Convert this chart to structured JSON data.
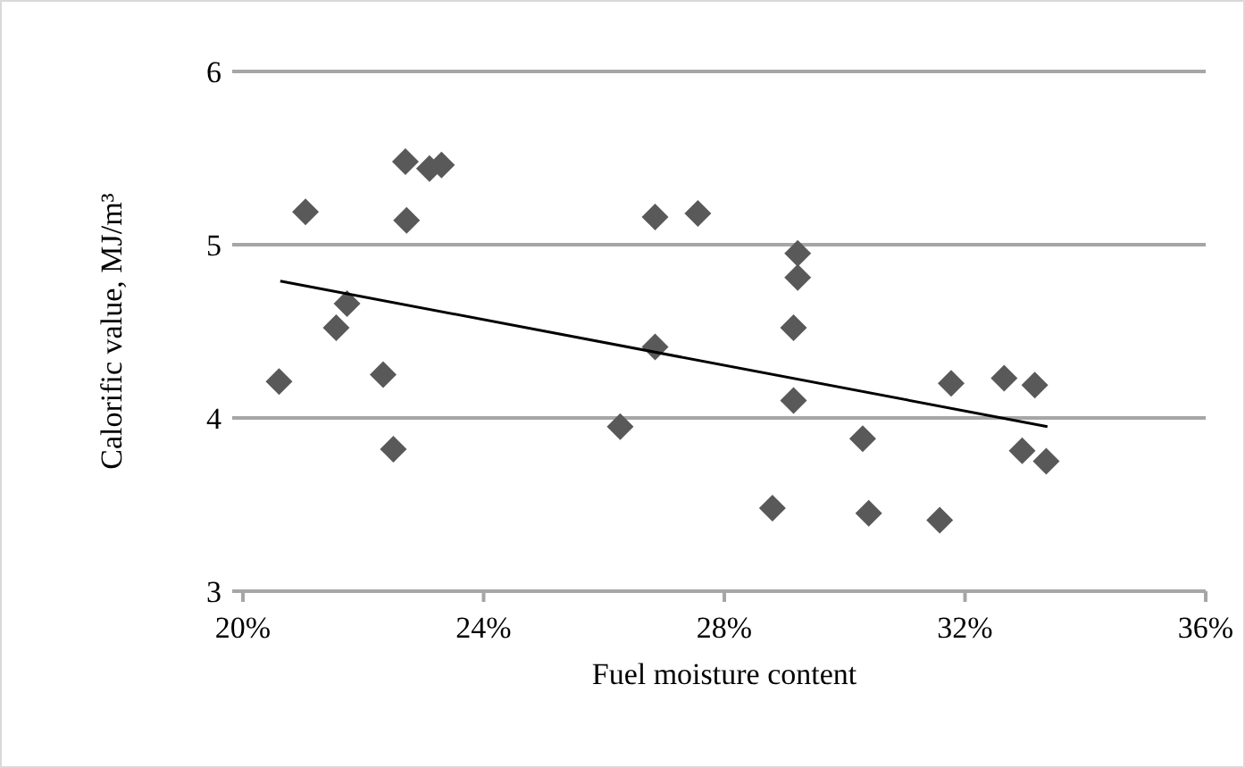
{
  "chart_data": {
    "type": "scatter",
    "xlabel": "Fuel moisture content",
    "ylabel": "Calorific value, MJ/m³",
    "xlim": [
      20,
      36
    ],
    "ylim": [
      3,
      6
    ],
    "xticks": [
      {
        "value": 20,
        "label": "20%"
      },
      {
        "value": 24,
        "label": "24%"
      },
      {
        "value": 28,
        "label": "28%"
      },
      {
        "value": 32,
        "label": "32%"
      },
      {
        "value": 36,
        "label": "36%"
      }
    ],
    "yticks": [
      3,
      4,
      5,
      6
    ],
    "grid": "y",
    "series": [
      {
        "marker": "diamond",
        "color": "#595959",
        "x": [
          20.6,
          21.04,
          21.55,
          21.73,
          22.33,
          22.5,
          22.7,
          22.72,
          23.1,
          23.3,
          26.27,
          26.85,
          26.85,
          27.56,
          28.8,
          29.22,
          29.22,
          29.15,
          29.15,
          30.3,
          30.4,
          31.58,
          31.77,
          32.65,
          33.16,
          32.95,
          33.35
        ],
        "values": [
          4.21,
          5.19,
          4.52,
          4.66,
          4.25,
          3.82,
          5.48,
          5.14,
          5.44,
          5.46,
          3.95,
          5.16,
          4.41,
          5.18,
          3.48,
          4.95,
          4.81,
          4.52,
          4.1,
          3.88,
          3.45,
          3.41,
          4.2,
          4.23,
          4.19,
          3.81,
          3.75
        ]
      },
      {
        "type": "line",
        "color": "#000000",
        "x": [
          20.62,
          33.37
        ],
        "values": [
          4.79,
          3.95
        ]
      }
    ]
  }
}
